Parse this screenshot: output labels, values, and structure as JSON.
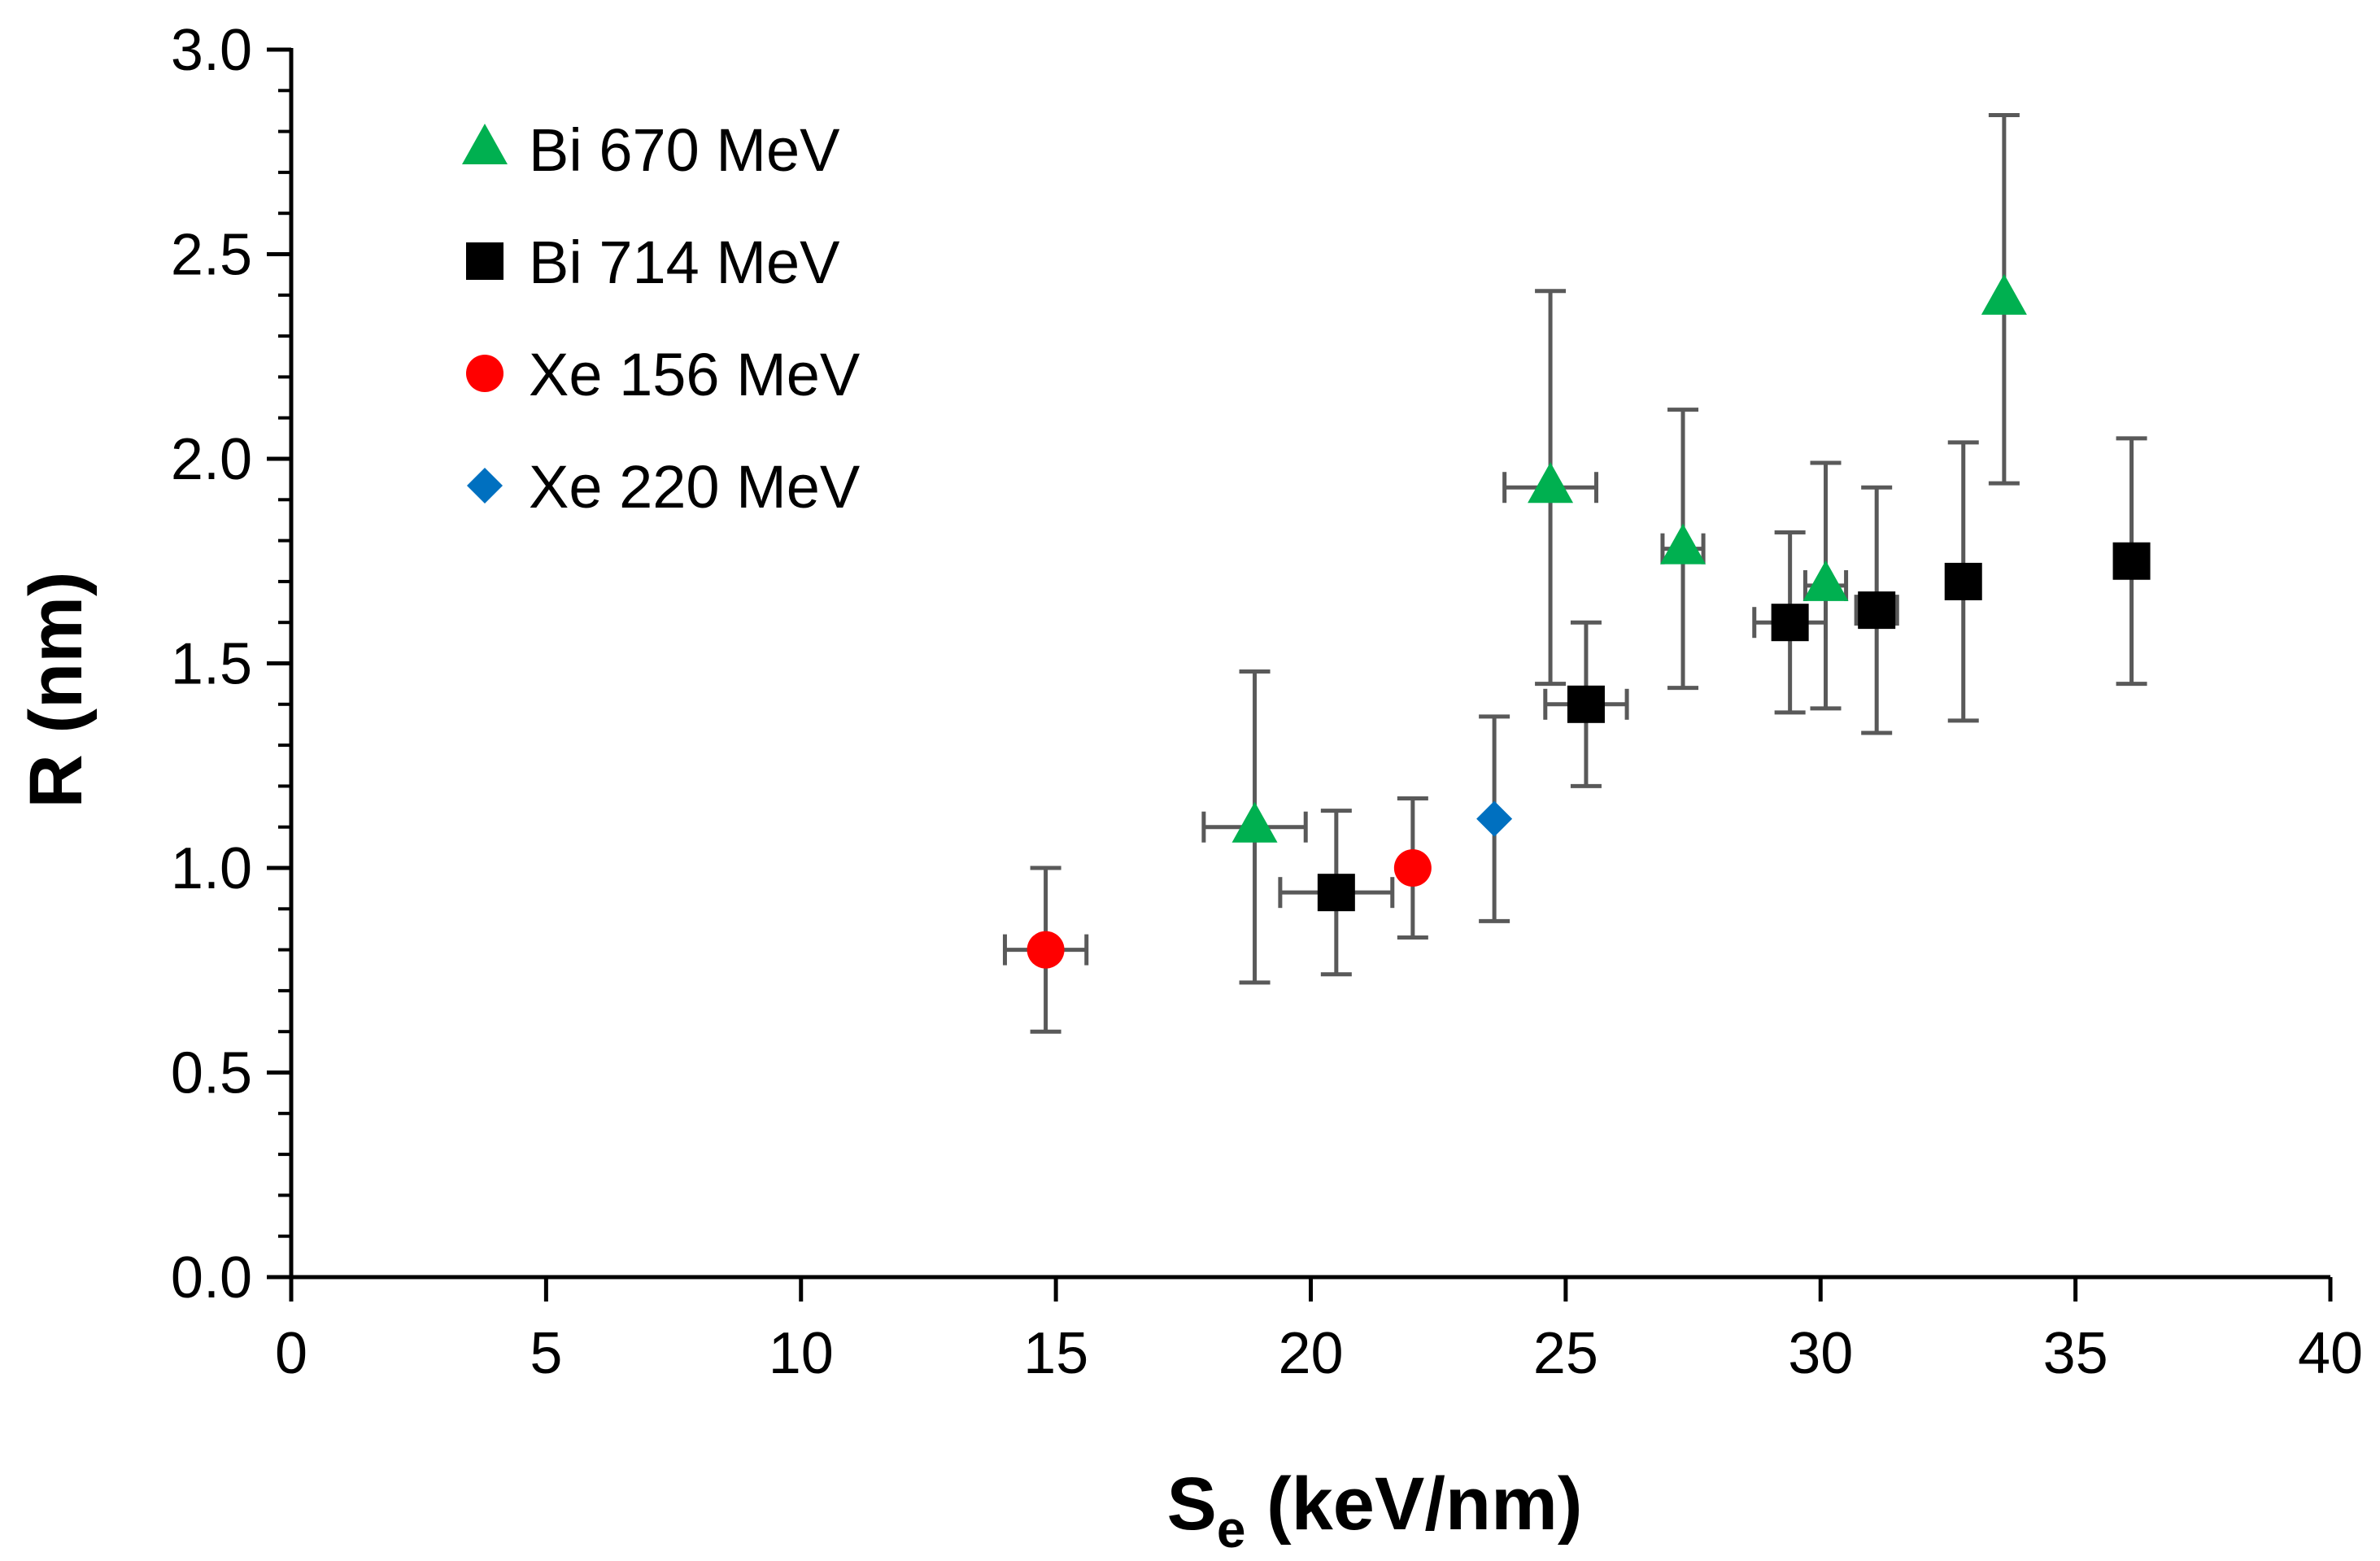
{
  "chart_data": {
    "type": "scatter",
    "xlabel": "S",
    "xlabel_sub": "e",
    "xlabel_unit": " (keV/nm)",
    "ylabel": "R (nm)",
    "xlim": [
      0,
      40
    ],
    "ylim": [
      0,
      3.0
    ],
    "x_ticks": [
      0,
      5,
      10,
      15,
      20,
      25,
      30,
      35,
      40
    ],
    "y_ticks": [
      0.0,
      0.5,
      1.0,
      1.5,
      2.0,
      2.5,
      3.0
    ],
    "x_tick_labels": [
      "0",
      "5",
      "10",
      "15",
      "20",
      "25",
      "30",
      "35",
      "40"
    ],
    "y_tick_labels": [
      "0.0",
      "0.5",
      "1.0",
      "1.5",
      "2.0",
      "2.5",
      "3.0"
    ],
    "grid": false,
    "legend_position": "top-left",
    "error_bar_color": "#595959",
    "series": [
      {
        "name": "Bi 670 MeV",
        "marker": "triangle",
        "color": "#00b050",
        "points": [
          {
            "x": 18.9,
            "y": 1.1,
            "y_err": [
              0.72,
              1.48
            ],
            "x_err": [
              17.9,
              19.9
            ]
          },
          {
            "x": 24.7,
            "y": 1.93,
            "y_err": [
              1.45,
              2.41
            ],
            "x_err": [
              23.8,
              25.6
            ]
          },
          {
            "x": 27.3,
            "y": 1.78,
            "y_err": [
              1.44,
              2.12
            ],
            "x_err": [
              26.9,
              27.7
            ]
          },
          {
            "x": 30.1,
            "y": 1.69,
            "y_err": [
              1.39,
              1.99
            ],
            "x_err": [
              29.7,
              30.5
            ]
          },
          {
            "x": 33.6,
            "y": 2.39,
            "y_err": [
              1.94,
              2.84
            ]
          }
        ]
      },
      {
        "name": "Bi 714 MeV",
        "marker": "square",
        "color": "#000000",
        "points": [
          {
            "x": 20.5,
            "y": 0.94,
            "y_err": [
              0.74,
              1.14
            ],
            "x_err": [
              19.4,
              21.6
            ]
          },
          {
            "x": 25.4,
            "y": 1.4,
            "y_err": [
              1.2,
              1.6
            ],
            "x_err": [
              24.6,
              26.2
            ]
          },
          {
            "x": 29.4,
            "y": 1.6,
            "y_err": [
              1.38,
              1.82
            ],
            "x_err": [
              28.7,
              30.1
            ]
          },
          {
            "x": 31.1,
            "y": 1.63,
            "y_err": [
              1.33,
              1.93
            ],
            "x_err": [
              30.7,
              31.5
            ]
          },
          {
            "x": 32.8,
            "y": 1.7,
            "y_err": [
              1.36,
              2.04
            ]
          },
          {
            "x": 36.1,
            "y": 1.75,
            "y_err": [
              1.45,
              2.05
            ]
          }
        ]
      },
      {
        "name": "Xe 156 MeV",
        "marker": "circle",
        "color": "#ff0000",
        "points": [
          {
            "x": 14.8,
            "y": 0.8,
            "y_err": [
              0.6,
              1.0
            ],
            "x_err": [
              14.0,
              15.6
            ]
          },
          {
            "x": 22.0,
            "y": 1.0,
            "y_err": [
              0.83,
              1.17
            ]
          }
        ]
      },
      {
        "name": "Xe 220 MeV",
        "marker": "diamond",
        "color": "#0070c0",
        "points": [
          {
            "x": 23.6,
            "y": 1.12,
            "y_err": [
              0.87,
              1.37
            ]
          }
        ]
      }
    ]
  }
}
